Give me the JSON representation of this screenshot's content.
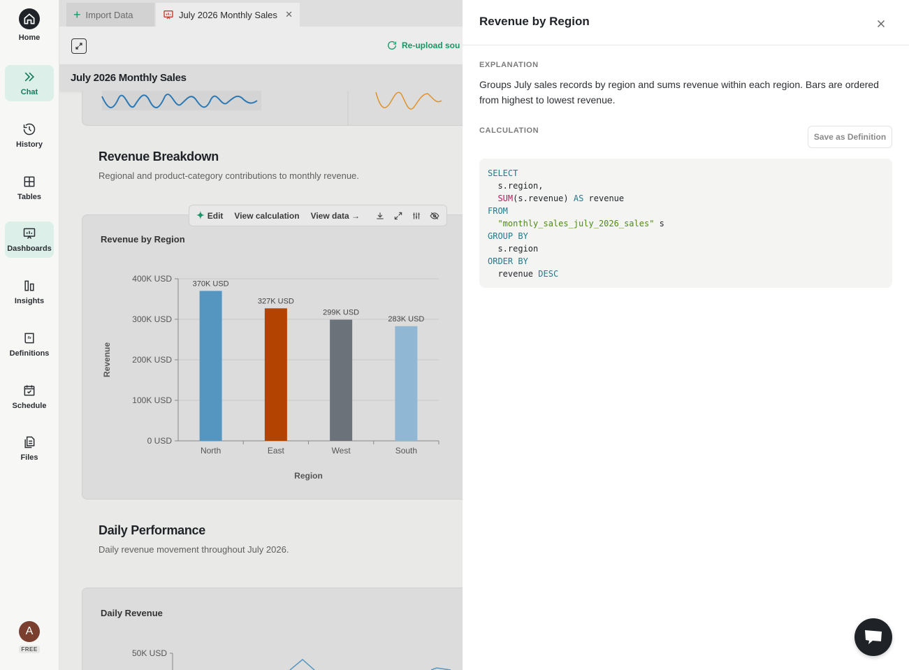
{
  "sidebar": {
    "items": [
      {
        "label": "Home"
      },
      {
        "label": "Chat"
      },
      {
        "label": "History"
      },
      {
        "label": "Tables"
      },
      {
        "label": "Dashboards"
      },
      {
        "label": "Insights"
      },
      {
        "label": "Definitions"
      },
      {
        "label": "Schedule"
      },
      {
        "label": "Files"
      }
    ],
    "avatar_initial": "A",
    "plan": "FREE"
  },
  "tabs": [
    {
      "label": "Import Data"
    },
    {
      "label": "July 2026 Monthly Sales"
    }
  ],
  "toolbar": {
    "reupload_label": "Re-upload sou"
  },
  "dashboard": {
    "title": "July 2026 Monthly Sales",
    "sections": [
      {
        "title": "Revenue Breakdown",
        "subtitle": "Regional and product-category contributions to monthly revenue."
      },
      {
        "title": "Daily Performance",
        "subtitle": "Daily revenue movement throughout July 2026."
      }
    ],
    "chart_toolbar": {
      "edit": "Edit",
      "view_calculation": "View calculation",
      "view_data": "View data →"
    },
    "daily_chart_title": "Daily Revenue",
    "daily_chart_tick": "50K USD"
  },
  "chart_data": {
    "type": "bar",
    "title": "Revenue by Region",
    "categories": [
      "North",
      "East",
      "West",
      "South"
    ],
    "values": [
      370000,
      327000,
      299000,
      283000
    ],
    "data_labels": [
      "370K USD",
      "327K USD",
      "299K USD",
      "283K USD"
    ],
    "colors": [
      "#5496c0",
      "#b24300",
      "#6b7279",
      "#90b8d5"
    ],
    "xlabel": "Region",
    "ylabel": "Revenue",
    "ylim": [
      0,
      400000
    ],
    "yticks": [
      0,
      100000,
      200000,
      300000,
      400000
    ],
    "ytick_labels": [
      "0 USD",
      "100K USD",
      "200K USD",
      "300K USD",
      "400K USD"
    ],
    "grid": true
  },
  "panel": {
    "title": "Revenue by Region",
    "explanation_label": "EXPLANATION",
    "explanation": "Groups July sales records by region and sums revenue within each region. Bars are ordered from highest to lowest revenue.",
    "calculation_label": "CALCULATION",
    "save_label": "Save as Definition",
    "sql": {
      "select": "SELECT",
      "col1": "s.region,",
      "sum_fn": "SUM",
      "sum_arg": "(s.revenue)",
      "as": "AS",
      "alias": "revenue",
      "from": "FROM",
      "table": "\"monthly_sales_july_2026_sales\"",
      "table_alias": "s",
      "group_by": "GROUP BY",
      "group_col": "s.region",
      "order_by": "ORDER BY",
      "order_col": "revenue",
      "desc": "DESC"
    }
  }
}
